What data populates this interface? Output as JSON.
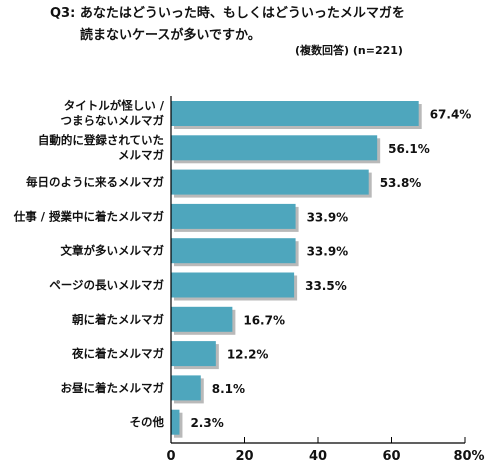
{
  "header": {
    "title_line1": "Q3: あなたはどういった時、もしくはどういったメルマガを",
    "title_line2": "読まないケースが多いですか。",
    "note": "(複数回答) (n=221)"
  },
  "chart_data": {
    "type": "bar",
    "orientation": "horizontal",
    "title": "Q3: あなたはどういった時、もしくはどういったメルマガを 読まないケースが多いですか。",
    "subtitle": "(複数回答) (n=221)",
    "categories": [
      [
        "タイトルが怪しい /",
        "つまらないメルマガ"
      ],
      [
        "自動的に登録されていた",
        "メルマガ"
      ],
      [
        "毎日のように来るメルマガ"
      ],
      [
        "仕事 / 授業中に着たメルマガ"
      ],
      [
        "文章が多いメルマガ"
      ],
      [
        "ページの長いメルマガ"
      ],
      [
        "朝に着たメルマガ"
      ],
      [
        "夜に着たメルマガ"
      ],
      [
        "お昼に着たメルマガ"
      ],
      [
        "その他"
      ]
    ],
    "values": [
      67.4,
      56.1,
      53.8,
      33.9,
      33.9,
      33.5,
      16.7,
      12.2,
      8.1,
      2.3
    ],
    "value_labels": [
      "67.4%",
      "56.1%",
      "53.8%",
      "33.9%",
      "33.9%",
      "33.5%",
      "16.7%",
      "12.2%",
      "8.1%",
      "2.3%"
    ],
    "xlim": [
      0,
      80
    ],
    "xticks": [
      "0",
      "20",
      "40",
      "60",
      "80%"
    ],
    "bar_color": "#4ea6bd",
    "shadow_color": "#b9b9b9",
    "grid": false,
    "legend": "none"
  }
}
